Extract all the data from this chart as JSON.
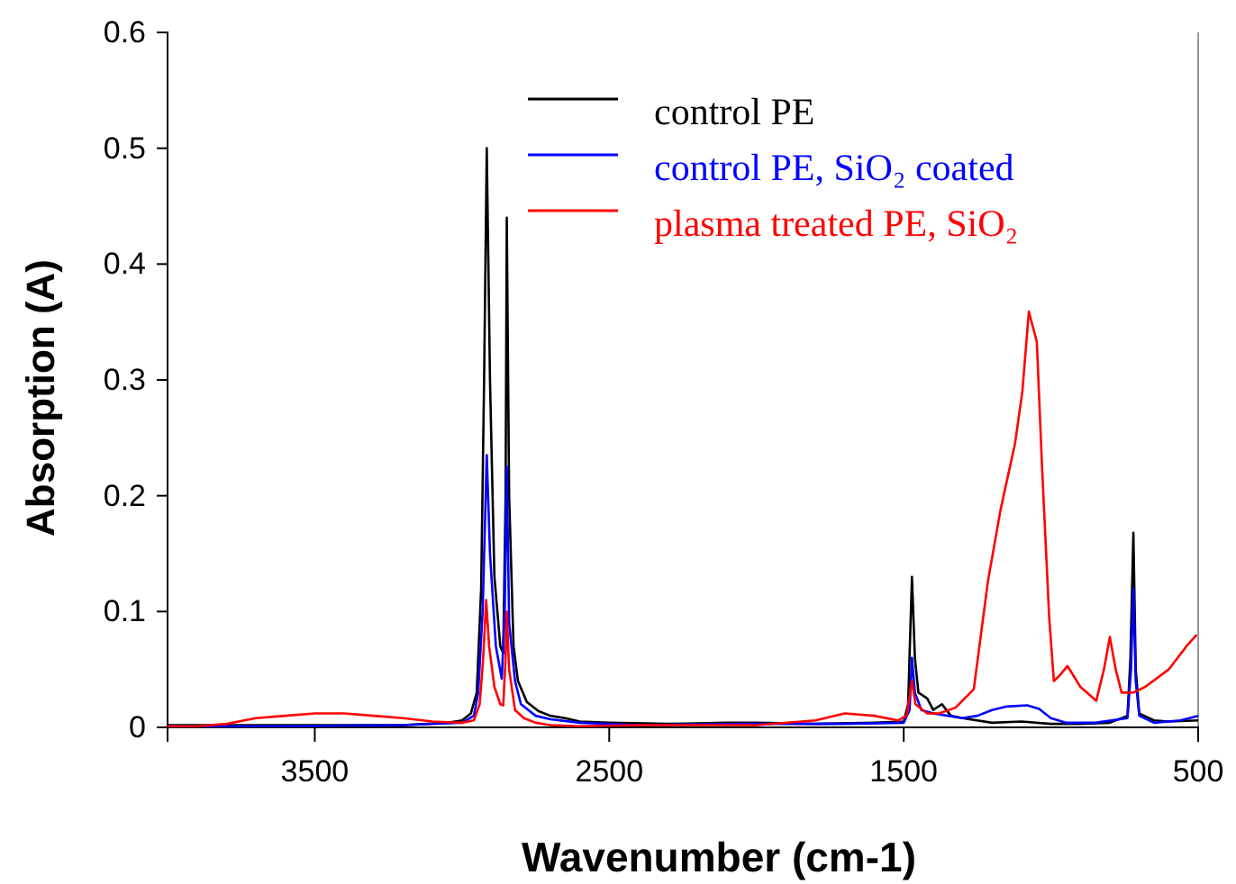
{
  "chart_data": {
    "type": "line",
    "xlabel": "Wavenumber (cm-1)",
    "ylabel": "Absorption (A)",
    "xlim": [
      4000,
      500
    ],
    "xticks": [
      3500,
      2500,
      1500,
      500
    ],
    "ylim": [
      0,
      0.6
    ],
    "yticks": [
      0,
      0.1,
      0.2,
      0.3,
      0.4,
      0.5,
      0.6
    ],
    "grid": false,
    "legend": "top right",
    "marker": "none",
    "line_style": "solid",
    "series": [
      {
        "name": "control PE",
        "color": "#000000",
        "x": [
          4000,
          3800,
          3600,
          3400,
          3200,
          3050,
          3000,
          2970,
          2950,
          2935,
          2925,
          2916,
          2905,
          2890,
          2870,
          2860,
          2852,
          2848,
          2840,
          2825,
          2810,
          2780,
          2740,
          2700,
          2650,
          2600,
          2500,
          2300,
          2100,
          2000,
          1800,
          1600,
          1500,
          1485,
          1472,
          1462,
          1450,
          1420,
          1400,
          1370,
          1340,
          1300,
          1200,
          1100,
          1000,
          900,
          800,
          740,
          730,
          720,
          712,
          700,
          650,
          600,
          500
        ],
        "values": [
          0.002,
          0.002,
          0.002,
          0.002,
          0.002,
          0.004,
          0.006,
          0.012,
          0.03,
          0.12,
          0.3,
          0.5,
          0.3,
          0.13,
          0.07,
          0.064,
          0.2,
          0.44,
          0.2,
          0.07,
          0.04,
          0.022,
          0.014,
          0.01,
          0.008,
          0.005,
          0.004,
          0.003,
          0.004,
          0.004,
          0.003,
          0.004,
          0.005,
          0.02,
          0.13,
          0.06,
          0.03,
          0.025,
          0.015,
          0.02,
          0.01,
          0.008,
          0.004,
          0.005,
          0.003,
          0.003,
          0.004,
          0.01,
          0.06,
          0.168,
          0.05,
          0.012,
          0.006,
          0.005,
          0.006
        ]
      },
      {
        "name": "control PE, SiO₂ coated",
        "color": "#0000ff",
        "x": [
          4000,
          3600,
          3200,
          3000,
          2960,
          2945,
          2930,
          2916,
          2905,
          2885,
          2865,
          2855,
          2848,
          2840,
          2820,
          2800,
          2750,
          2700,
          2600,
          2400,
          2000,
          1700,
          1500,
          1480,
          1472,
          1462,
          1440,
          1400,
          1350,
          1300,
          1250,
          1200,
          1150,
          1080,
          1040,
          1000,
          950,
          850,
          740,
          728,
          720,
          712,
          700,
          650,
          560,
          500
        ],
        "values": [
          0.001,
          0.001,
          0.002,
          0.004,
          0.01,
          0.03,
          0.1,
          0.235,
          0.15,
          0.07,
          0.042,
          0.1,
          0.225,
          0.09,
          0.04,
          0.02,
          0.01,
          0.007,
          0.004,
          0.002,
          0.003,
          0.003,
          0.004,
          0.015,
          0.06,
          0.03,
          0.015,
          0.012,
          0.01,
          0.008,
          0.01,
          0.015,
          0.018,
          0.019,
          0.016,
          0.008,
          0.004,
          0.004,
          0.008,
          0.05,
          0.12,
          0.04,
          0.01,
          0.004,
          0.006,
          0.01
        ]
      },
      {
        "name": "plasma treated PE, SiO₂",
        "color": "#ff0000",
        "x": [
          4000,
          3900,
          3800,
          3700,
          3600,
          3500,
          3400,
          3300,
          3200,
          3100,
          3000,
          2960,
          2940,
          2928,
          2918,
          2908,
          2890,
          2870,
          2860,
          2852,
          2848,
          2840,
          2820,
          2790,
          2750,
          2700,
          2600,
          2400,
          2000,
          1800,
          1700,
          1600,
          1520,
          1490,
          1472,
          1460,
          1420,
          1380,
          1324,
          1262,
          1214,
          1171,
          1122,
          1097,
          1075,
          1048,
          1030,
          1006,
          990,
          970,
          944,
          900,
          846,
          820,
          800,
          780,
          760,
          720,
          680,
          600,
          540,
          505
        ],
        "values": [
          0.001,
          0.001,
          0.003,
          0.008,
          0.01,
          0.012,
          0.012,
          0.01,
          0.008,
          0.005,
          0.004,
          0.006,
          0.02,
          0.06,
          0.11,
          0.07,
          0.035,
          0.02,
          0.019,
          0.06,
          0.1,
          0.05,
          0.015,
          0.008,
          0.004,
          0.002,
          0.001,
          0.002,
          0.002,
          0.006,
          0.012,
          0.01,
          0.006,
          0.01,
          0.04,
          0.02,
          0.012,
          0.012,
          0.017,
          0.033,
          0.126,
          0.188,
          0.245,
          0.29,
          0.359,
          0.333,
          0.224,
          0.095,
          0.04,
          0.045,
          0.053,
          0.035,
          0.023,
          0.05,
          0.078,
          0.05,
          0.03,
          0.03,
          0.035,
          0.05,
          0.07,
          0.08
        ]
      }
    ]
  }
}
